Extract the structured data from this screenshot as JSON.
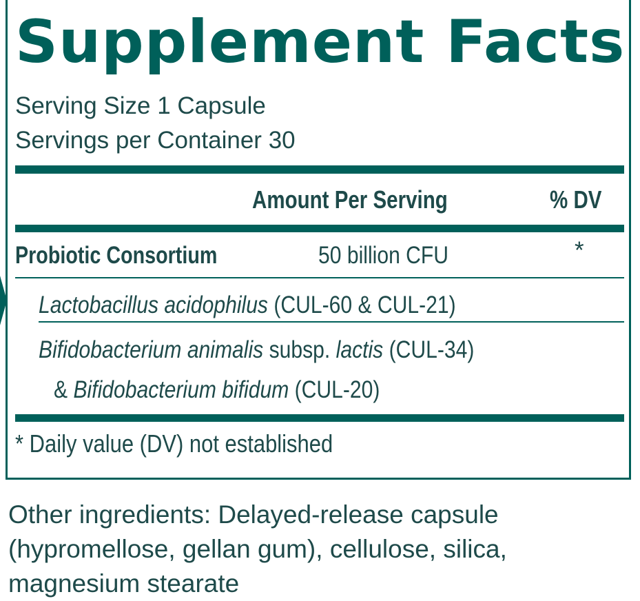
{
  "title": "Supplement Facts",
  "serving": {
    "size": "Serving Size 1 Capsule",
    "per_container": "Servings per Container 30"
  },
  "columns": {
    "amount": "Amount Per Serving",
    "dv": "% DV"
  },
  "consortium": {
    "name": "Probiotic Consortium",
    "amount": "50 billion CFU",
    "dv": "*"
  },
  "strains": {
    "s1_species": "Lactobacillus acidophilus",
    "s1_code": " (CUL-60 & CUL-21)",
    "s2_species": "Bifidobacterium animalis",
    "s2_subsp": " subsp. ",
    "s2_variant": "lactis",
    "s2_code": " (CUL-34)",
    "s3_prefix": "& ",
    "s3_species": "Bifidobacterium bifidum",
    "s3_code": " (CUL-20)"
  },
  "footnote": "* Daily value (DV) not established",
  "other_ingredients": "Other ingredients: Delayed-release capsule (hypromellose, gellan gum), cellulose, silica, magnesium stearate",
  "colors": {
    "brand_teal": "#00605a",
    "text": "#1e4a4a"
  }
}
